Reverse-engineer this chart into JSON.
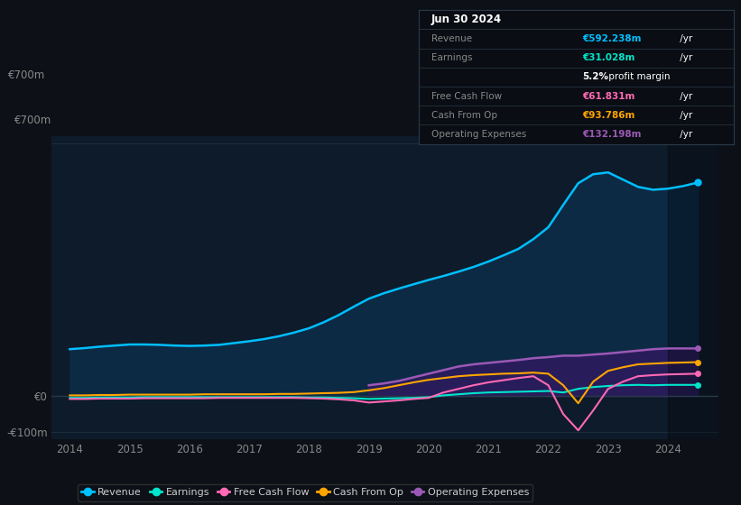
{
  "bg_color": "#0d1117",
  "plot_bg_color": "#0d1b2a",
  "years": [
    2014,
    2014.25,
    2014.5,
    2014.75,
    2015,
    2015.25,
    2015.5,
    2015.75,
    2016,
    2016.25,
    2016.5,
    2016.75,
    2017,
    2017.25,
    2017.5,
    2017.75,
    2018,
    2018.25,
    2018.5,
    2018.75,
    2019,
    2019.25,
    2019.5,
    2019.75,
    2020,
    2020.25,
    2020.5,
    2020.75,
    2021,
    2021.25,
    2021.5,
    2021.75,
    2022,
    2022.25,
    2022.5,
    2022.75,
    2023,
    2023.25,
    2023.5,
    2023.75,
    2024,
    2024.25,
    2024.5
  ],
  "revenue": [
    130,
    133,
    137,
    140,
    143,
    143,
    142,
    140,
    139,
    140,
    142,
    147,
    152,
    158,
    166,
    176,
    188,
    205,
    225,
    248,
    270,
    285,
    298,
    310,
    322,
    333,
    345,
    358,
    373,
    390,
    408,
    435,
    468,
    530,
    590,
    615,
    620,
    600,
    580,
    572,
    575,
    582,
    592
  ],
  "earnings": [
    -5,
    -5,
    -4,
    -4,
    -4,
    -3,
    -3,
    -3,
    -3,
    -3,
    -3,
    -3,
    -3,
    -3,
    -3,
    -3,
    -4,
    -4,
    -5,
    -6,
    -8,
    -7,
    -6,
    -5,
    -3,
    2,
    5,
    8,
    10,
    11,
    12,
    13,
    14,
    10,
    20,
    25,
    28,
    30,
    31,
    30,
    31,
    31,
    31
  ],
  "free_cash_flow": [
    -8,
    -8,
    -7,
    -7,
    -7,
    -6,
    -6,
    -6,
    -6,
    -6,
    -5,
    -5,
    -5,
    -5,
    -5,
    -5,
    -6,
    -7,
    -9,
    -12,
    -18,
    -15,
    -12,
    -8,
    -5,
    10,
    20,
    30,
    38,
    44,
    50,
    55,
    30,
    -50,
    -95,
    -40,
    20,
    40,
    55,
    58,
    60,
    61,
    62
  ],
  "cash_from_op": [
    2,
    2,
    3,
    3,
    4,
    4,
    4,
    4,
    4,
    5,
    5,
    5,
    5,
    5,
    6,
    6,
    7,
    8,
    9,
    11,
    16,
    22,
    30,
    38,
    45,
    50,
    55,
    58,
    60,
    62,
    63,
    65,
    62,
    30,
    -20,
    40,
    70,
    80,
    88,
    90,
    92,
    93,
    94
  ],
  "operating_expenses": [
    0,
    0,
    0,
    0,
    0,
    0,
    0,
    0,
    0,
    0,
    0,
    0,
    0,
    0,
    0,
    0,
    0,
    0,
    0,
    0,
    30,
    35,
    42,
    52,
    62,
    72,
    82,
    88,
    92,
    96,
    100,
    105,
    108,
    112,
    112,
    115,
    118,
    122,
    126,
    130,
    132,
    132,
    132
  ],
  "ylim": [
    -120,
    720
  ],
  "yticks": [
    -100,
    0,
    700
  ],
  "ytick_labels": [
    "-€100m",
    "€0",
    "€700m"
  ],
  "xlim": [
    2013.7,
    2024.85
  ],
  "xticks": [
    2014,
    2015,
    2016,
    2017,
    2018,
    2019,
    2020,
    2021,
    2022,
    2023,
    2024
  ],
  "highlight_x_start": 2024.0,
  "highlight_x_end": 2024.85,
  "legend": [
    {
      "label": "Revenue",
      "color": "#00bfff"
    },
    {
      "label": "Earnings",
      "color": "#00e5cc"
    },
    {
      "label": "Free Cash Flow",
      "color": "#ff69b4"
    },
    {
      "label": "Cash From Op",
      "color": "#ffa500"
    },
    {
      "label": "Operating Expenses",
      "color": "#9b59b6"
    }
  ],
  "info_box": {
    "title": "Jun 30 2024",
    "rows": [
      {
        "label": "Revenue",
        "value": "€592.238m",
        "color": "#00bfff"
      },
      {
        "label": "Earnings",
        "value": "€31.028m",
        "color": "#00e5cc"
      },
      {
        "label": "",
        "value": "5.2% profit margin",
        "color": "white",
        "bold_prefix": "5.2%"
      },
      {
        "label": "Free Cash Flow",
        "value": "€61.831m",
        "color": "#ff69b4"
      },
      {
        "label": "Cash From Op",
        "value": "€93.786m",
        "color": "#ffa500"
      },
      {
        "label": "Operating Expenses",
        "value": "€132.198m",
        "color": "#9b59b6"
      }
    ]
  }
}
